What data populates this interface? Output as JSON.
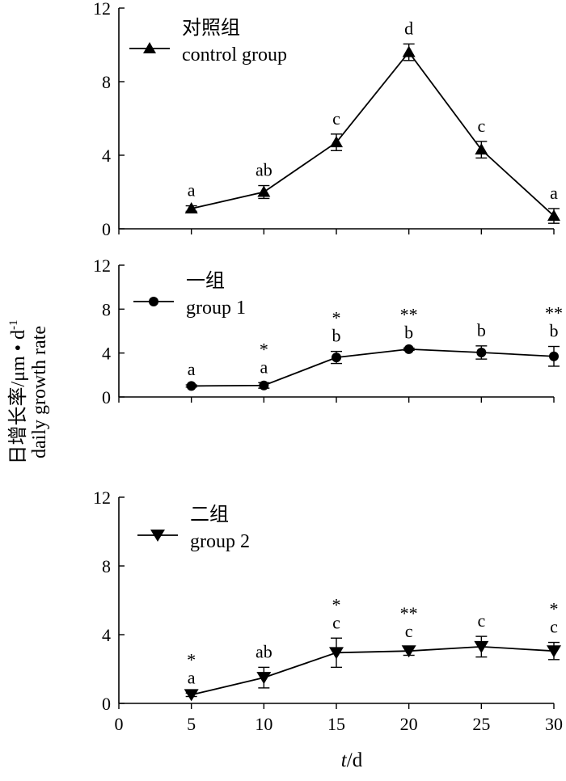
{
  "x_axis_label": {
    "var": "t",
    "unit": "/d"
  },
  "y_axis_label": {
    "line1": "日增长率/μm • d",
    "sup": "-1",
    "line2": "daily growth rate"
  },
  "x_ticks": [
    "0",
    "5",
    "10",
    "15",
    "20",
    "25",
    "30"
  ],
  "y_ticks": [
    "0",
    "4",
    "8",
    "12"
  ],
  "chart_data": [
    {
      "type": "line",
      "legend_cn": "对照组",
      "legend_en": "control group",
      "marker": "triangle-up",
      "xlim": [
        0,
        30
      ],
      "ylim": [
        0,
        12
      ],
      "x": [
        5,
        10,
        15,
        20,
        25,
        30
      ],
      "values": [
        1.1,
        2.0,
        4.7,
        9.6,
        4.3,
        0.7
      ],
      "error": [
        0.15,
        0.35,
        0.45,
        0.45,
        0.45,
        0.4
      ],
      "letters": [
        "a",
        "ab",
        "c",
        "d",
        "c",
        "a"
      ],
      "stars": [
        "",
        "",
        "",
        "",
        "",
        ""
      ]
    },
    {
      "type": "line",
      "legend_cn": "一组",
      "legend_en": "group 1",
      "marker": "circle",
      "xlim": [
        0,
        30
      ],
      "ylim": [
        0,
        12
      ],
      "x": [
        5,
        10,
        15,
        20,
        25,
        30
      ],
      "values": [
        1.0,
        1.05,
        3.6,
        4.35,
        4.05,
        3.7
      ],
      "error": [
        0.1,
        0.25,
        0.55,
        0.1,
        0.6,
        0.9
      ],
      "letters": [
        "a",
        "a",
        "b",
        "b",
        "b",
        "b"
      ],
      "stars": [
        "",
        "*",
        "*",
        "**",
        "",
        "**"
      ]
    },
    {
      "type": "line",
      "legend_cn": "二组",
      "legend_en": "group 2",
      "marker": "triangle-down",
      "xlim": [
        0,
        30
      ],
      "ylim": [
        0,
        12
      ],
      "x": [
        5,
        10,
        15,
        20,
        25,
        30
      ],
      "values": [
        0.5,
        1.5,
        2.95,
        3.05,
        3.3,
        3.05
      ],
      "error": [
        0.1,
        0.6,
        0.85,
        0.25,
        0.6,
        0.5
      ],
      "letters": [
        "a",
        "ab",
        "c",
        "c",
        "c",
        "c"
      ],
      "stars": [
        "*",
        "",
        "*",
        "**",
        "",
        "*"
      ]
    }
  ]
}
